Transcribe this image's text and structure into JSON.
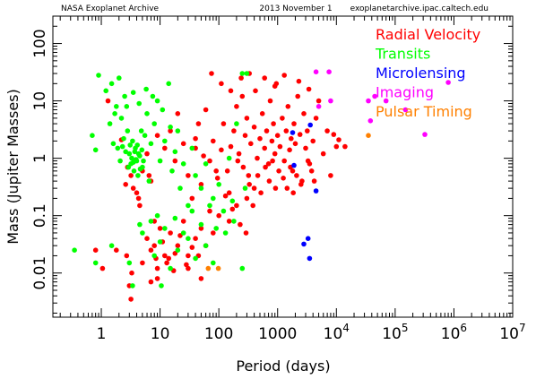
{
  "header": {
    "left": "NASA Exoplanet Archive",
    "center": "2013 November 1",
    "right": "exoplanetarchive.ipac.caltech.edu"
  },
  "chart_data": {
    "type": "scatter",
    "xlabel": "Period (days)",
    "ylabel": "Mass (Jupiter Masses)",
    "xscale": "log",
    "yscale": "log",
    "xlim": [
      0.15,
      10000000
    ],
    "ylim": [
      0.0017,
      300
    ],
    "xticks": [
      {
        "v": 1,
        "base": "1",
        "exp": ""
      },
      {
        "v": 10,
        "base": "10",
        "exp": ""
      },
      {
        "v": 100,
        "base": "100",
        "exp": ""
      },
      {
        "v": 1000,
        "base": "1000",
        "exp": ""
      },
      {
        "v": 10000,
        "base": "10",
        "exp": "4"
      },
      {
        "v": 100000,
        "base": "10",
        "exp": "5"
      },
      {
        "v": 1000000,
        "base": "10",
        "exp": "6"
      },
      {
        "v": 10000000,
        "base": "10",
        "exp": "7"
      }
    ],
    "yticks": [
      {
        "v": 0.01,
        "label": "0.01"
      },
      {
        "v": 0.1,
        "label": "0.1"
      },
      {
        "v": 1,
        "label": "1"
      },
      {
        "v": 10,
        "label": "10"
      },
      {
        "v": 100,
        "label": "100"
      }
    ],
    "legend_position": "top-right",
    "series": [
      {
        "name": "Radial Velocity",
        "color": "#ff0000",
        "points": [
          [
            1.3,
            10
          ],
          [
            2.2,
            2.1
          ],
          [
            2.8,
            0.7
          ],
          [
            3.2,
            0.5
          ],
          [
            3.5,
            0.3
          ],
          [
            4,
            0.25
          ],
          [
            4.5,
            0.15
          ],
          [
            5,
            0.6
          ],
          [
            6,
            1.2
          ],
          [
            7,
            0.4
          ],
          [
            8,
            0.08
          ],
          [
            9,
            2.5
          ],
          [
            12,
            1.5
          ],
          [
            15,
            3
          ],
          [
            18,
            0.9
          ],
          [
            20,
            6
          ],
          [
            25,
            1.8
          ],
          [
            30,
            0.5
          ],
          [
            35,
            0.2
          ],
          [
            40,
            2.2
          ],
          [
            45,
            4
          ],
          [
            50,
            0.35
          ],
          [
            55,
            1.1
          ],
          [
            60,
            7
          ],
          [
            70,
            0.12
          ],
          [
            80,
            2
          ],
          [
            90,
            0.6
          ],
          [
            110,
            1.4
          ],
          [
            120,
            4
          ],
          [
            150,
            0.25
          ],
          [
            180,
            3
          ],
          [
            200,
            8
          ],
          [
            220,
            1.2
          ],
          [
            250,
            12
          ],
          [
            280,
            2.5
          ],
          [
            300,
            5
          ],
          [
            320,
            0.5
          ],
          [
            350,
            1.8
          ],
          [
            400,
            3.5
          ],
          [
            420,
            15
          ],
          [
            450,
            1
          ],
          [
            500,
            2.2
          ],
          [
            550,
            6
          ],
          [
            600,
            1.5
          ],
          [
            650,
            3
          ],
          [
            700,
            0.8
          ],
          [
            750,
            10
          ],
          [
            800,
            2
          ],
          [
            850,
            4
          ],
          [
            900,
            1.2
          ],
          [
            950,
            20
          ],
          [
            1000,
            2.5
          ],
          [
            1100,
            1.6
          ],
          [
            1200,
            5
          ],
          [
            1300,
            0.9
          ],
          [
            1400,
            3
          ],
          [
            1500,
            8
          ],
          [
            1600,
            1.4
          ],
          [
            1700,
            2.2
          ],
          [
            1800,
            0.6
          ],
          [
            1900,
            4
          ],
          [
            2000,
            1.8
          ],
          [
            2200,
            12
          ],
          [
            2400,
            2.6
          ],
          [
            2600,
            0.4
          ],
          [
            2800,
            6
          ],
          [
            3000,
            1.5
          ],
          [
            3200,
            3
          ],
          [
            3500,
            0.8
          ],
          [
            4000,
            2
          ],
          [
            4500,
            5
          ],
          [
            5000,
            10
          ],
          [
            6000,
            1.2
          ],
          [
            7000,
            3
          ],
          [
            8000,
            0.5
          ],
          [
            10000,
            1.6
          ],
          [
            14000,
            1.6
          ],
          [
            6,
            0.04
          ],
          [
            8,
            0.03
          ],
          [
            10,
            0.06
          ],
          [
            12,
            0.02
          ],
          [
            15,
            0.05
          ],
          [
            20,
            0.03
          ],
          [
            25,
            0.08
          ],
          [
            30,
            0.02
          ],
          [
            40,
            0.04
          ],
          [
            50,
            0.06
          ],
          [
            60,
            0.03
          ],
          [
            80,
            0.05
          ],
          [
            100,
            0.1
          ],
          [
            150,
            0.08
          ],
          [
            200,
            0.15
          ],
          [
            300,
            0.2
          ],
          [
            400,
            0.3
          ],
          [
            5,
            0.015
          ],
          [
            7,
            0.025
          ],
          [
            9,
            0.012
          ],
          [
            11,
            0.035
          ],
          [
            14,
            0.018
          ],
          [
            18,
            0.022
          ],
          [
            22,
            0.045
          ],
          [
            28,
            0.014
          ],
          [
            35,
            0.028
          ],
          [
            45,
            0.02
          ],
          [
            3,
            0.006
          ],
          [
            3.2,
            0.0035
          ],
          [
            7,
            0.007
          ],
          [
            9,
            0.008
          ],
          [
            30,
            0.012
          ],
          [
            50,
            0.008
          ],
          [
            6.5,
            0.5
          ],
          [
            4.3,
            0.2
          ],
          [
            2.6,
            0.35
          ],
          [
            1.8,
            0.025
          ],
          [
            0.8,
            0.025
          ],
          [
            1.05,
            0.012
          ],
          [
            3.3,
            0.01
          ],
          [
            2.7,
            0.02
          ],
          [
            8.5,
            0.018
          ],
          [
            13,
            0.015
          ],
          [
            17,
            0.011
          ],
          [
            140,
            0.6
          ],
          [
            160,
            1.6
          ],
          [
            210,
            0.9
          ],
          [
            260,
            0.7
          ],
          [
            330,
            0.35
          ],
          [
            380,
            0.15
          ],
          [
            460,
            0.5
          ],
          [
            520,
            0.25
          ],
          [
            620,
            0.7
          ],
          [
            720,
            0.4
          ],
          [
            820,
            0.9
          ],
          [
            920,
            0.3
          ],
          [
            1050,
            0.6
          ],
          [
            1250,
            0.45
          ],
          [
            1450,
            0.3
          ],
          [
            1650,
            0.7
          ],
          [
            1850,
            0.25
          ],
          [
            2100,
            0.5
          ],
          [
            2500,
            0.35
          ],
          [
            3300,
            0.9
          ],
          [
            3800,
            0.6
          ],
          [
            4200,
            0.4
          ],
          [
            9000,
            2.6
          ],
          [
            11000,
            2.1
          ],
          [
            40,
            1.5
          ],
          [
            70,
            0.9
          ],
          [
            95,
            0.45
          ],
          [
            130,
            0.22
          ],
          [
            170,
            0.13
          ],
          [
            230,
            0.07
          ],
          [
            290,
            0.05
          ],
          [
            75,
            30
          ],
          [
            110,
            20
          ],
          [
            160,
            15
          ],
          [
            240,
            25
          ],
          [
            330,
            30
          ],
          [
            600,
            25
          ],
          [
            900,
            18
          ],
          [
            1300,
            28
          ],
          [
            2300,
            22
          ],
          [
            3400,
            16
          ]
        ]
      },
      {
        "name": "Transits",
        "color": "#00ff00",
        "points": [
          [
            0.9,
            28
          ],
          [
            1.2,
            15
          ],
          [
            1.5,
            20
          ],
          [
            1.8,
            8
          ],
          [
            2,
            25
          ],
          [
            2.2,
            5
          ],
          [
            2.5,
            12
          ],
          [
            2.8,
            3
          ],
          [
            3,
            1.2
          ],
          [
            3.2,
            0.8
          ],
          [
            3.4,
            2
          ],
          [
            3.6,
            0.6
          ],
          [
            3.8,
            1.5
          ],
          [
            4,
            0.9
          ],
          [
            4.2,
            0.5
          ],
          [
            4.5,
            1.1
          ],
          [
            4.8,
            3
          ],
          [
            5,
            0.7
          ],
          [
            5.5,
            2.5
          ],
          [
            6,
            6
          ],
          [
            6.5,
            0.4
          ],
          [
            7,
            1.8
          ],
          [
            8,
            4
          ],
          [
            9,
            10
          ],
          [
            10,
            0.9
          ],
          [
            12,
            2
          ],
          [
            14,
            20
          ],
          [
            16,
            0.6
          ],
          [
            18,
            1.3
          ],
          [
            20,
            3
          ],
          [
            22,
            0.3
          ],
          [
            25,
            0.8
          ],
          [
            30,
            0.15
          ],
          [
            35,
            1.5
          ],
          [
            40,
            0.5
          ],
          [
            50,
            0.3
          ],
          [
            60,
            0.8
          ],
          [
            80,
            0.2
          ],
          [
            100,
            0.35
          ],
          [
            120,
            0.12
          ],
          [
            150,
            1
          ],
          [
            180,
            0.08
          ],
          [
            200,
            4
          ],
          [
            250,
            30
          ],
          [
            300,
            30
          ],
          [
            2.1,
            0.9
          ],
          [
            2.3,
            1.6
          ],
          [
            2.6,
            1.3
          ],
          [
            2.9,
            0.7
          ],
          [
            3.1,
            1.7
          ],
          [
            3.3,
            1.0
          ],
          [
            3.5,
            0.85
          ],
          [
            3.7,
            1.3
          ],
          [
            3.9,
            0.95
          ],
          [
            4.1,
            1.7
          ],
          [
            4.3,
            1.2
          ],
          [
            4.6,
            0.65
          ],
          [
            4.9,
            1.4
          ],
          [
            5.2,
            0.9
          ],
          [
            1.6,
            1.8
          ],
          [
            1.9,
            1.5
          ],
          [
            2.4,
            2.2
          ],
          [
            0.7,
            2.5
          ],
          [
            0.8,
            1.4
          ],
          [
            1.4,
            4
          ],
          [
            1.7,
            6
          ],
          [
            2.7,
            8
          ],
          [
            3.5,
            14
          ],
          [
            4.4,
            9
          ],
          [
            5.8,
            16
          ],
          [
            7.5,
            12
          ],
          [
            11,
            7
          ],
          [
            15,
            3.5
          ],
          [
            1.5,
            0.03
          ],
          [
            3,
            0.015
          ],
          [
            5,
            0.05
          ],
          [
            8,
            0.02
          ],
          [
            10,
            0.035
          ],
          [
            15,
            0.012
          ],
          [
            20,
            0.025
          ],
          [
            30,
            0.04
          ],
          [
            40,
            0.018
          ],
          [
            60,
            0.03
          ],
          [
            80,
            0.015
          ],
          [
            0.35,
            0.025
          ],
          [
            0.8,
            0.015
          ],
          [
            4.5,
            0.07
          ],
          [
            7,
            0.08
          ],
          [
            9,
            0.1
          ],
          [
            12,
            0.06
          ],
          [
            18,
            0.09
          ],
          [
            25,
            0.05
          ],
          [
            35,
            0.12
          ],
          [
            50,
            0.07
          ],
          [
            70,
            0.15
          ],
          [
            90,
            0.06
          ],
          [
            130,
            0.05
          ],
          [
            170,
            0.18
          ],
          [
            3.4,
            0.006
          ],
          [
            10.5,
            0.006
          ],
          [
            250,
            0.012
          ],
          [
            280,
            0.3
          ]
        ]
      },
      {
        "name": "Microlensing",
        "color": "#0000ff",
        "points": [
          [
            1800,
            2.8
          ],
          [
            1900,
            0.75
          ],
          [
            2800,
            0.032
          ],
          [
            3300,
            0.04
          ],
          [
            3500,
            0.018
          ],
          [
            3600,
            3.8
          ],
          [
            4500,
            0.27
          ]
        ]
      },
      {
        "name": "Imaging",
        "color": "#ff00ff",
        "points": [
          [
            4500,
            32
          ],
          [
            5000,
            8
          ],
          [
            7500,
            32
          ],
          [
            8000,
            10
          ],
          [
            35000,
            10
          ],
          [
            38000,
            4.5
          ],
          [
            45000,
            12
          ],
          [
            70000,
            10
          ],
          [
            150000,
            7
          ],
          [
            320000,
            2.6
          ],
          [
            800000,
            21
          ]
        ]
      },
      {
        "name": "Pulsar Timing",
        "color": "#ff8000",
        "points": [
          [
            35000,
            2.5
          ],
          [
            66,
            0.012
          ],
          [
            98,
            0.012
          ]
        ]
      }
    ]
  }
}
